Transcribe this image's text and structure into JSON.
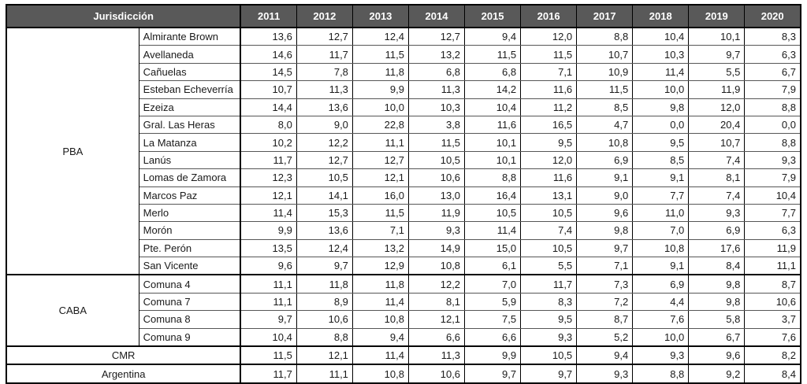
{
  "colors": {
    "header_bg": "#595959",
    "header_text": "#ffffff",
    "body_text": "#1a1a1a",
    "border_dark": "#000000",
    "border_light": "#565656",
    "page_bg": "#ffffff"
  },
  "table": {
    "jurisdiction_header": "Jurisdicción",
    "years": [
      "2011",
      "2012",
      "2013",
      "2014",
      "2015",
      "2016",
      "2017",
      "2018",
      "2019",
      "2020"
    ],
    "groups": [
      {
        "name": "PBA",
        "rows": [
          {
            "name": "Almirante Brown",
            "values": [
              "13,6",
              "12,7",
              "12,4",
              "12,7",
              "9,4",
              "12,0",
              "8,8",
              "10,4",
              "10,1",
              "8,3"
            ]
          },
          {
            "name": "Avellaneda",
            "values": [
              "14,6",
              "11,7",
              "11,5",
              "13,2",
              "11,5",
              "11,5",
              "10,7",
              "10,3",
              "9,7",
              "6,3"
            ]
          },
          {
            "name": "Cañuelas",
            "values": [
              "14,5",
              "7,8",
              "11,8",
              "6,8",
              "6,8",
              "7,1",
              "10,9",
              "11,4",
              "5,5",
              "6,7"
            ]
          },
          {
            "name": "Esteban Echeverría",
            "values": [
              "10,7",
              "11,3",
              "9,9",
              "11,3",
              "14,2",
              "11,6",
              "11,5",
              "10,0",
              "11,9",
              "7,9"
            ]
          },
          {
            "name": "Ezeiza",
            "values": [
              "14,4",
              "13,6",
              "10,0",
              "10,3",
              "10,4",
              "11,2",
              "8,5",
              "9,8",
              "12,0",
              "8,8"
            ]
          },
          {
            "name": "Gral. Las Heras",
            "values": [
              "8,0",
              "9,0",
              "22,8",
              "3,8",
              "11,6",
              "16,5",
              "4,7",
              "0,0",
              "20,4",
              "0,0"
            ]
          },
          {
            "name": "La Matanza",
            "values": [
              "10,2",
              "12,2",
              "11,1",
              "11,5",
              "10,1",
              "9,5",
              "10,8",
              "9,5",
              "10,7",
              "8,8"
            ]
          },
          {
            "name": "Lanús",
            "values": [
              "11,7",
              "12,7",
              "12,7",
              "10,5",
              "10,1",
              "12,0",
              "6,9",
              "8,5",
              "7,4",
              "9,3"
            ]
          },
          {
            "name": "Lomas de Zamora",
            "values": [
              "12,3",
              "10,5",
              "12,1",
              "10,6",
              "8,8",
              "11,6",
              "9,1",
              "9,1",
              "8,1",
              "7,9"
            ]
          },
          {
            "name": "Marcos Paz",
            "values": [
              "12,1",
              "14,1",
              "16,0",
              "13,0",
              "16,4",
              "13,1",
              "9,0",
              "7,7",
              "7,4",
              "10,4"
            ]
          },
          {
            "name": "Merlo",
            "values": [
              "11,4",
              "15,3",
              "11,5",
              "11,9",
              "10,5",
              "10,5",
              "9,6",
              "11,0",
              "9,3",
              "7,7"
            ]
          },
          {
            "name": "Morón",
            "values": [
              "9,9",
              "13,6",
              "7,1",
              "9,3",
              "11,4",
              "7,4",
              "9,8",
              "7,0",
              "6,9",
              "6,3"
            ]
          },
          {
            "name": "Pte. Perón",
            "values": [
              "13,5",
              "12,4",
              "13,2",
              "14,9",
              "15,0",
              "10,5",
              "9,7",
              "10,8",
              "17,6",
              "11,9"
            ]
          },
          {
            "name": "San Vicente",
            "values": [
              "9,6",
              "9,7",
              "12,9",
              "10,8",
              "6,1",
              "5,5",
              "7,1",
              "9,1",
              "8,4",
              "11,1"
            ]
          }
        ]
      },
      {
        "name": "CABA",
        "rows": [
          {
            "name": "Comuna 4",
            "values": [
              "11,1",
              "11,8",
              "11,8",
              "12,2",
              "7,0",
              "11,7",
              "7,3",
              "6,9",
              "9,8",
              "8,7"
            ]
          },
          {
            "name": "Comuna 7",
            "values": [
              "11,1",
              "8,9",
              "11,4",
              "8,1",
              "5,9",
              "8,3",
              "7,2",
              "4,4",
              "9,8",
              "10,6"
            ]
          },
          {
            "name": "Comuna 8",
            "values": [
              "9,7",
              "10,6",
              "10,8",
              "12,1",
              "7,5",
              "9,5",
              "8,7",
              "7,6",
              "5,8",
              "3,7"
            ]
          },
          {
            "name": "Comuna 9",
            "values": [
              "10,4",
              "8,8",
              "9,4",
              "6,6",
              "6,6",
              "9,3",
              "5,2",
              "10,0",
              "6,7",
              "7,6"
            ]
          }
        ]
      }
    ],
    "summary_rows": [
      {
        "name": "CMR",
        "values": [
          "11,5",
          "12,1",
          "11,4",
          "11,3",
          "9,9",
          "10,5",
          "9,4",
          "9,3",
          "9,6",
          "8,2"
        ]
      },
      {
        "name": "Argentina",
        "values": [
          "11,7",
          "11,1",
          "10,8",
          "10,6",
          "9,7",
          "9,7",
          "9,3",
          "8,8",
          "9,2",
          "8,4"
        ]
      }
    ]
  }
}
